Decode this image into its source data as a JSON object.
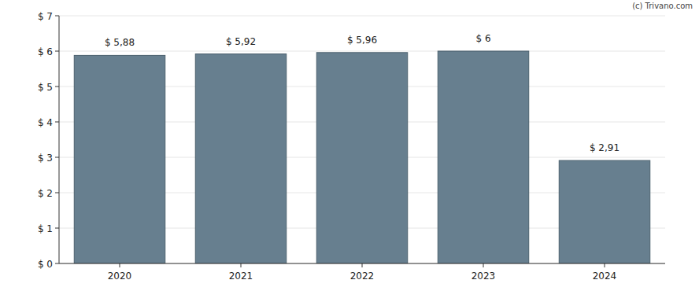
{
  "chart_data": {
    "type": "bar",
    "annotations": [
      "(c) Trivano.com"
    ],
    "categories": [
      "2020",
      "2021",
      "2022",
      "2023",
      "2024"
    ],
    "values": [
      5.88,
      5.92,
      5.96,
      6,
      2.91
    ],
    "value_labels": [
      "$ 5,88",
      "$ 5,92",
      "$ 5,96",
      "$ 6",
      "$ 2,91"
    ],
    "color": "#677f8f",
    "ylim": [
      0,
      7
    ],
    "yticks": [
      {
        "value": 0,
        "label": "$ 0"
      },
      {
        "value": 1,
        "label": "$ 1"
      },
      {
        "value": 2,
        "label": "$ 2"
      },
      {
        "value": 3,
        "label": "$ 3"
      },
      {
        "value": 4,
        "label": "$ 4"
      },
      {
        "value": 5,
        "label": "$ 5"
      },
      {
        "value": 6,
        "label": "$ 6"
      },
      {
        "value": 7,
        "label": "$ 7"
      }
    ],
    "grid": true,
    "data_labels": true
  }
}
